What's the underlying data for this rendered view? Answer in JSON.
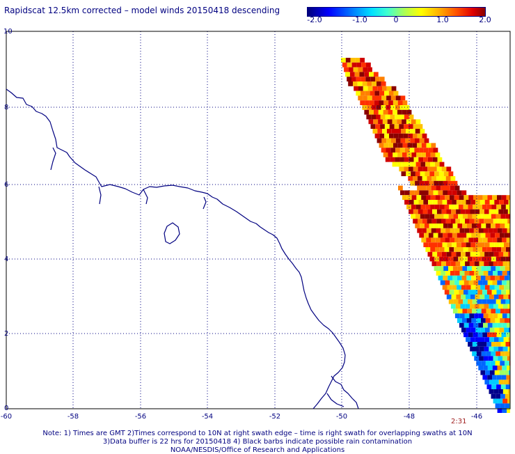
{
  "title": "Rapidscat 12.5km corrected – model winds 20150418 descending",
  "colorbar": {
    "labels": [
      "-2.0",
      "-1.0",
      "0",
      "1.0",
      "2.0"
    ],
    "range": [
      -2.0,
      2.0
    ]
  },
  "axes": {
    "x_ticks": [
      "-60",
      "-58",
      "-56",
      "-54",
      "-52",
      "-50",
      "-48",
      "-46"
    ],
    "y_ticks": [
      "0",
      "2",
      "4",
      "6",
      "8",
      "10"
    ],
    "lon_range": [
      -60,
      -45.2
    ],
    "lat_range": [
      0,
      10
    ]
  },
  "time_label": "2:31",
  "notes": [
    "Note: 1) Times are GMT 2)Times correspond to 10N at right swath edge – time is right swath for overlapping swaths at 10N",
    "3)Data buffer is 22 hrs for 20150418 4) Black barbs indicate possible rain contamination",
    "NOAA/NESDIS/Office of Research and Applications"
  ],
  "colors": {
    "coastline": "#000080",
    "grid": "#000080",
    "frame": "#000000"
  }
}
